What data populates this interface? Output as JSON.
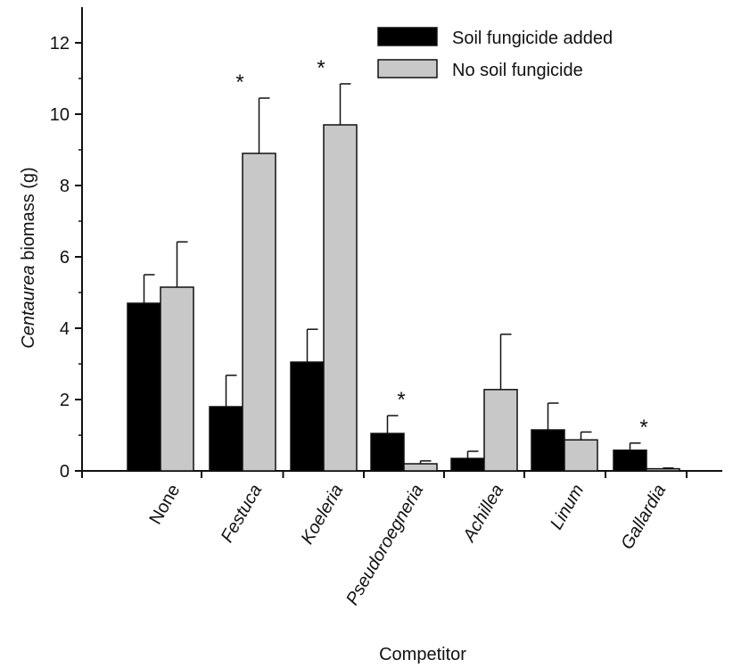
{
  "chart_data": {
    "type": "bar",
    "title": "",
    "xlabel": "Competitor",
    "ylabel_italic": "Centaurea",
    "ylabel_rest": " biomass (g)",
    "ylim": [
      0,
      13
    ],
    "yticks": [
      0,
      2,
      4,
      6,
      8,
      10,
      12
    ],
    "categories": [
      "None",
      "Festuca",
      "Koeleria",
      "Pseudoroegneria",
      "Achillea",
      "Linum",
      "Gallardia"
    ],
    "categories_italic": [
      false,
      true,
      true,
      true,
      true,
      true,
      true
    ],
    "series": [
      {
        "name": "Soil fungicide added",
        "color": "#000000",
        "values": [
          4.7,
          1.8,
          3.05,
          1.05,
          0.35,
          1.15,
          0.58
        ],
        "errors": [
          0.8,
          0.88,
          0.92,
          0.5,
          0.2,
          0.75,
          0.2
        ]
      },
      {
        "name": "No soil fungicide",
        "color": "#c8c8c8",
        "values": [
          5.15,
          8.9,
          9.7,
          0.2,
          2.28,
          0.87,
          0.06
        ],
        "errors": [
          1.27,
          1.55,
          1.15,
          0.08,
          1.55,
          0.22,
          0.02
        ]
      }
    ],
    "significance_marker": "*",
    "significant": [
      false,
      true,
      true,
      true,
      false,
      false,
      true
    ],
    "legend_position": "top-right"
  }
}
